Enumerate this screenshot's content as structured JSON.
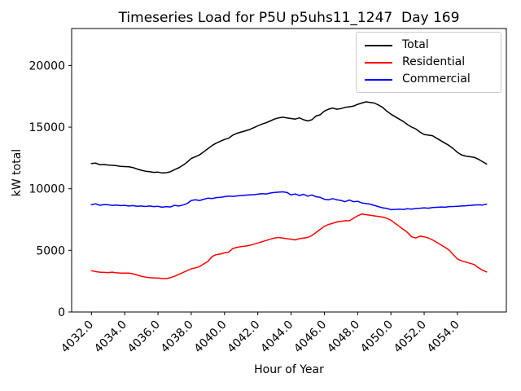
{
  "chart_data": {
    "type": "line",
    "title": "Timeseries Load for P5U p5uhs11_1247  Day 169",
    "xlabel": "Hour of Year",
    "ylabel": "kW total",
    "xlim": [
      4030.81,
      4056.94
    ],
    "ylim": [
      0,
      23000
    ],
    "grid": false,
    "legend_position": "upper right",
    "xticks": [
      4032,
      4034,
      4036,
      4038,
      4040,
      4042,
      4044,
      4046,
      4048,
      4050,
      4052,
      4054
    ],
    "xtick_labels": [
      "4032.0",
      "4034.0",
      "4036.0",
      "4038.0",
      "4040.0",
      "4042.0",
      "4044.0",
      "4046.0",
      "4048.0",
      "4050.0",
      "4052.0",
      "4054.0"
    ],
    "yticks": [
      0,
      5000,
      10000,
      15000,
      20000
    ],
    "ytick_labels": [
      "0",
      "5000",
      "10000",
      "15000",
      "20000"
    ],
    "x": [
      4032.0,
      4032.25,
      4032.5,
      4032.75,
      4033.0,
      4033.25,
      4033.5,
      4033.75,
      4034.0,
      4034.25,
      4034.5,
      4034.75,
      4035.0,
      4035.25,
      4035.5,
      4035.75,
      4036.0,
      4036.25,
      4036.5,
      4036.75,
      4037.0,
      4037.25,
      4037.5,
      4037.75,
      4038.0,
      4038.25,
      4038.5,
      4038.75,
      4039.0,
      4039.25,
      4039.5,
      4039.75,
      4040.0,
      4040.25,
      4040.5,
      4040.75,
      4041.0,
      4041.25,
      4041.5,
      4041.75,
      4042.0,
      4042.25,
      4042.5,
      4042.75,
      4043.0,
      4043.25,
      4043.5,
      4043.75,
      4044.0,
      4044.25,
      4044.5,
      4044.75,
      4045.0,
      4045.25,
      4045.5,
      4045.75,
      4046.0,
      4046.25,
      4046.5,
      4046.75,
      4047.0,
      4047.25,
      4047.5,
      4047.75,
      4048.0,
      4048.25,
      4048.5,
      4048.75,
      4049.0,
      4049.25,
      4049.5,
      4049.75,
      4050.0,
      4050.25,
      4050.5,
      4050.75,
      4051.0,
      4051.25,
      4051.5,
      4051.75,
      4052.0,
      4052.25,
      4052.5,
      4052.75,
      4053.0,
      4053.25,
      4053.5,
      4053.75,
      4054.0,
      4054.25,
      4054.5,
      4054.75,
      4055.0,
      4055.25,
      4055.5,
      4055.75
    ],
    "series": [
      {
        "name": "Total",
        "color": "#000000",
        "values": [
          12050,
          12080,
          11950,
          11970,
          11920,
          11900,
          11870,
          11820,
          11800,
          11780,
          11720,
          11600,
          11500,
          11420,
          11380,
          11330,
          11350,
          11280,
          11300,
          11380,
          11550,
          11700,
          11900,
          12150,
          12450,
          12600,
          12750,
          13000,
          13250,
          13500,
          13700,
          13850,
          14000,
          14100,
          14350,
          14500,
          14600,
          14700,
          14800,
          14950,
          15100,
          15250,
          15350,
          15500,
          15650,
          15750,
          15800,
          15750,
          15700,
          15650,
          15750,
          15600,
          15500,
          15600,
          15900,
          16000,
          16300,
          16450,
          16550,
          16450,
          16500,
          16600,
          16650,
          16700,
          16850,
          16950,
          17050,
          17000,
          16950,
          16800,
          16600,
          16300,
          16050,
          15850,
          15650,
          15450,
          15200,
          15000,
          14850,
          14600,
          14400,
          14350,
          14300,
          14100,
          13900,
          13700,
          13500,
          13250,
          12950,
          12750,
          12650,
          12600,
          12550,
          12400,
          12200,
          12000
        ]
      },
      {
        "name": "Residential",
        "color": "#ff0000",
        "values": [
          3350,
          3280,
          3230,
          3210,
          3200,
          3230,
          3180,
          3160,
          3150,
          3160,
          3100,
          3000,
          2900,
          2830,
          2780,
          2760,
          2750,
          2720,
          2700,
          2780,
          2900,
          3050,
          3200,
          3350,
          3500,
          3580,
          3680,
          3900,
          4100,
          4500,
          4650,
          4700,
          4800,
          4850,
          5150,
          5250,
          5300,
          5350,
          5400,
          5500,
          5600,
          5700,
          5800,
          5900,
          6000,
          6050,
          6000,
          5950,
          5900,
          5850,
          5950,
          6000,
          6050,
          6200,
          6450,
          6700,
          6950,
          7100,
          7200,
          7300,
          7350,
          7400,
          7400,
          7600,
          7800,
          7950,
          7900,
          7850,
          7800,
          7750,
          7700,
          7600,
          7450,
          7200,
          6950,
          6700,
          6450,
          6100,
          6000,
          6150,
          6100,
          6000,
          5850,
          5650,
          5450,
          5250,
          5020,
          4650,
          4300,
          4150,
          4050,
          3950,
          3850,
          3600,
          3400,
          3250
        ]
      },
      {
        "name": "Commercial",
        "color": "#0000ff",
        "values": [
          8700,
          8780,
          8650,
          8720,
          8700,
          8650,
          8680,
          8630,
          8650,
          8600,
          8630,
          8580,
          8600,
          8560,
          8600,
          8550,
          8570,
          8500,
          8550,
          8520,
          8650,
          8600,
          8680,
          8800,
          9050,
          9100,
          9050,
          9150,
          9230,
          9200,
          9280,
          9300,
          9350,
          9400,
          9380,
          9420,
          9450,
          9480,
          9500,
          9520,
          9560,
          9600,
          9580,
          9650,
          9700,
          9720,
          9750,
          9700,
          9500,
          9580,
          9450,
          9550,
          9400,
          9500,
          9350,
          9300,
          9150,
          9100,
          9200,
          9100,
          9050,
          8950,
          9080,
          8950,
          8980,
          8850,
          8800,
          8750,
          8650,
          8550,
          8450,
          8400,
          8300,
          8320,
          8350,
          8320,
          8380,
          8350,
          8400,
          8420,
          8450,
          8420,
          8470,
          8490,
          8520,
          8500,
          8550,
          8560,
          8580,
          8600,
          8620,
          8650,
          8680,
          8700,
          8680,
          8750
        ]
      }
    ]
  }
}
